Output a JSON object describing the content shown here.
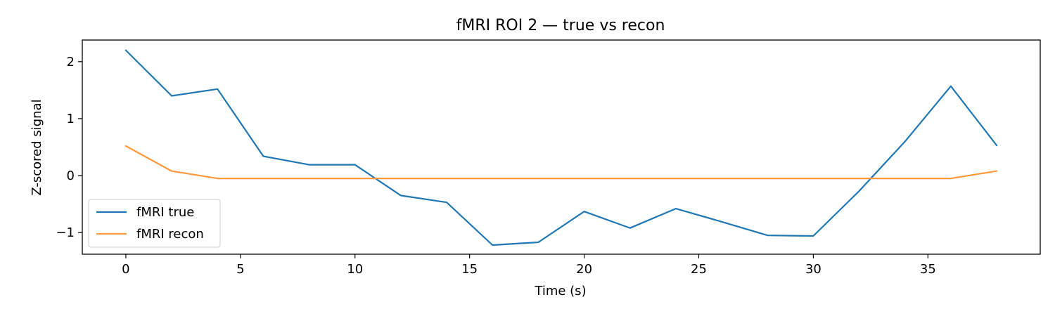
{
  "chart_data": {
    "type": "line",
    "title": "fMRI ROI 2 — true vs recon",
    "xlabel": "Time (s)",
    "ylabel": "Z-scored signal",
    "xlim": [
      -1.9,
      39.9
    ],
    "ylim": [
      -1.38,
      2.38
    ],
    "xticks": [
      0,
      5,
      10,
      15,
      20,
      25,
      30,
      35
    ],
    "xtick_labels": [
      "0",
      "5",
      "10",
      "15",
      "20",
      "25",
      "30",
      "35"
    ],
    "yticks": [
      -1,
      0,
      1,
      2
    ],
    "ytick_labels": [
      "−1",
      "0",
      "1",
      "2"
    ],
    "grid": false,
    "legend_position": "lower-left",
    "x": [
      0,
      2,
      4,
      6,
      8,
      10,
      12,
      14,
      16,
      18,
      20,
      22,
      24,
      26,
      28,
      30,
      32,
      34,
      36,
      38
    ],
    "series": [
      {
        "name": "fMRI true",
        "color": "#1f77b4",
        "values": [
          2.2,
          1.4,
          1.52,
          0.34,
          0.19,
          0.19,
          -0.35,
          -0.47,
          -1.22,
          -1.17,
          -0.63,
          -0.92,
          -0.58,
          -0.81,
          -1.05,
          -1.06,
          -0.27,
          0.6,
          1.57,
          0.53
        ]
      },
      {
        "name": "fMRI recon",
        "color": "#ff993f",
        "values": [
          0.52,
          0.08,
          -0.05,
          -0.05,
          -0.05,
          -0.05,
          -0.05,
          -0.05,
          -0.05,
          -0.05,
          -0.05,
          -0.05,
          -0.05,
          -0.05,
          -0.05,
          -0.05,
          -0.05,
          -0.05,
          -0.05,
          0.08
        ]
      }
    ]
  }
}
